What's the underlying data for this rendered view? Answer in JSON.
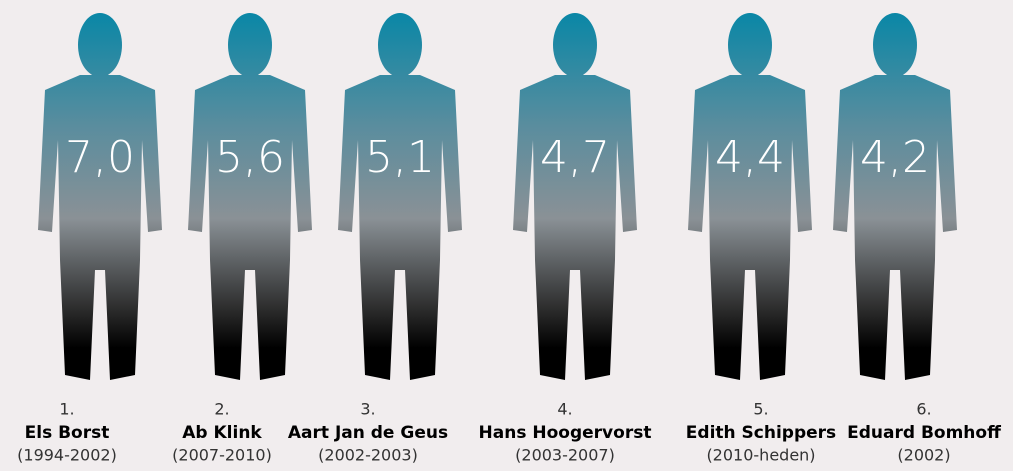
{
  "people": [
    {
      "rank": "1.",
      "name": "Els Borst",
      "years": "(1994-2002)",
      "score": "7,0"
    },
    {
      "rank": "2.",
      "name": "Ab Klink",
      "years": "(2007-2010)",
      "score": "5,6"
    },
    {
      "rank": "3.",
      "name": "Aart Jan de Geus",
      "years": "(2002-2003)",
      "score": "5,1"
    },
    {
      "rank": "4.",
      "name": "Hans Hoogervorst",
      "years": "(2003-2007)",
      "score": "4,7"
    },
    {
      "rank": "5.",
      "name": "Edith Schippers",
      "years": "(2010-heden)",
      "score": "4,4"
    },
    {
      "rank": "6.",
      "name": "Eduard Bomhoff",
      "years": "(2002)",
      "score": "4,2"
    }
  ]
}
